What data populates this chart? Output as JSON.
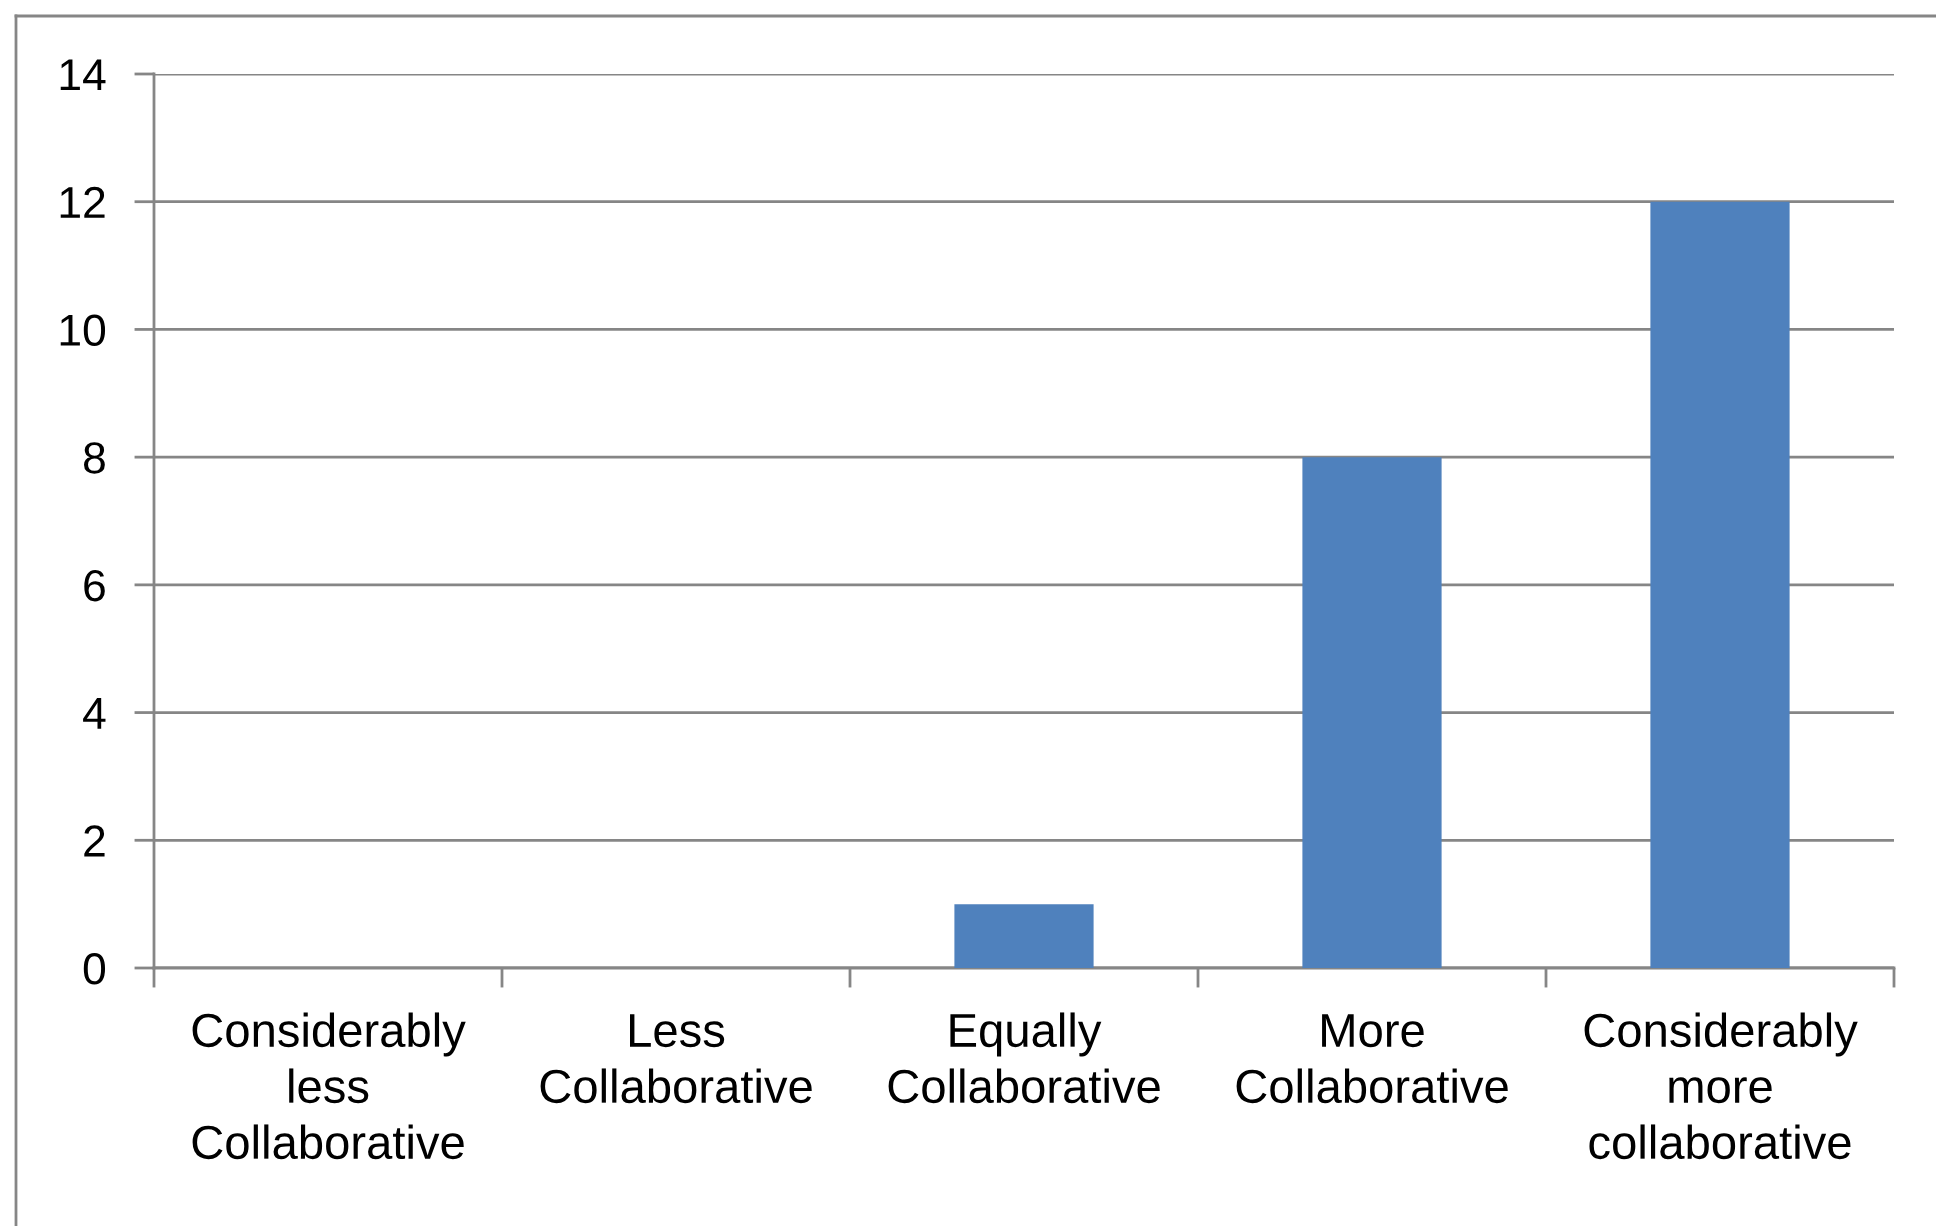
{
  "chart_data": {
    "type": "bar",
    "categories": [
      "Considerably less Collaborative",
      "Less Collaborative",
      "Equally Collaborative",
      "More Collaborative",
      "Considerably more collaborative"
    ],
    "values": [
      0,
      0,
      1,
      8,
      12
    ],
    "color": "#4f81bd",
    "ylim": [
      0,
      14
    ],
    "yticks": [
      0,
      2,
      4,
      6,
      8,
      10,
      12,
      14
    ],
    "grid": "y"
  }
}
